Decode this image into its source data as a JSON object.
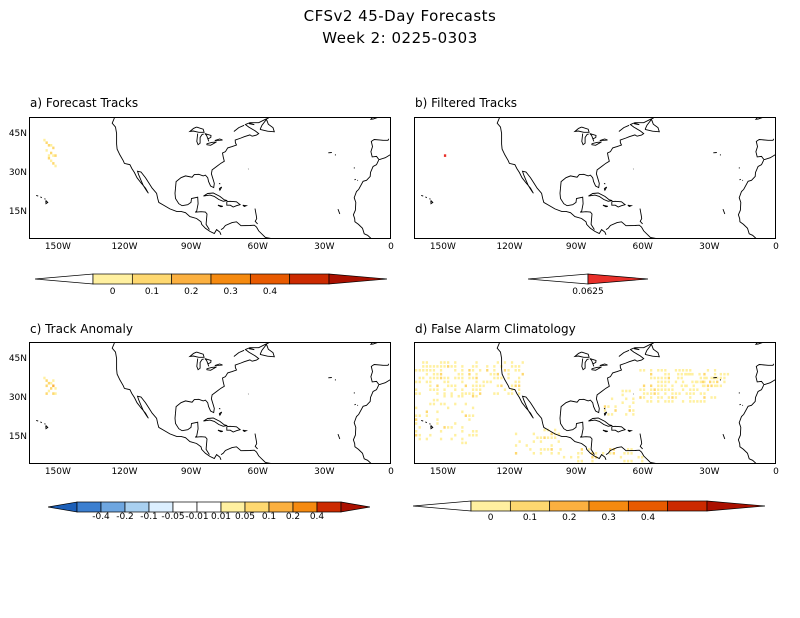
{
  "title": "CFSv2 45-Day Forecasts",
  "subtitle": "Week 2: 0225-0303",
  "colors": {
    "coast": "#000000",
    "warm": [
      "#fff0a0",
      "#fed870",
      "#fbb040",
      "#f58a10",
      "#e85a00",
      "#cc2a00",
      "#aa1000"
    ],
    "cool": [
      "#1c5fb8",
      "#3c7fd0",
      "#6ea6e0",
      "#a9d0f0",
      "#dcefff"
    ],
    "red_marker": "#e8302a"
  },
  "axes": {
    "lat_labels": [
      "45N",
      "30N",
      "15N"
    ],
    "lon_labels": [
      "150W",
      "120W",
      "90W",
      "60W",
      "30W",
      "0"
    ]
  },
  "panels": {
    "a": {
      "label": "a) Forecast Tracks",
      "colorbar_labels": [
        "0",
        "0.1",
        "0.2",
        "0.3",
        "0.4"
      ],
      "cells": [
        [
          -157,
          44,
          0
        ],
        [
          -156,
          43,
          1
        ],
        [
          -155,
          42,
          1
        ],
        [
          -154,
          42,
          0
        ],
        [
          -153,
          41,
          1
        ],
        [
          -156,
          40,
          0
        ],
        [
          -154,
          39,
          1
        ],
        [
          -153,
          38,
          0
        ],
        [
          -155,
          37,
          1
        ],
        [
          -154,
          36,
          0
        ],
        [
          -153,
          35,
          1
        ],
        [
          -152,
          34,
          0
        ],
        [
          -155,
          38,
          0
        ],
        [
          -152,
          38,
          1
        ]
      ]
    },
    "b": {
      "label": "b) Filtered Tracks",
      "colorbar_labels": [
        "0.0625"
      ],
      "cells": [
        [
          -150,
          38,
          0
        ]
      ]
    },
    "c": {
      "label": "c) Track Anomaly",
      "colorbar_labels": [
        "-0.4",
        "-0.2",
        "-0.1",
        "-0.05",
        "-0.01",
        "0.01",
        "0.05",
        "0.1",
        "0.2",
        "0.4"
      ],
      "cells": [
        [
          -157,
          39,
          0
        ],
        [
          -156,
          38,
          1
        ],
        [
          -155,
          37,
          1
        ],
        [
          -154,
          37,
          0
        ],
        [
          -153,
          36,
          2
        ],
        [
          -156,
          36,
          1
        ],
        [
          -154,
          35,
          1
        ],
        [
          -152,
          35,
          0
        ],
        [
          -155,
          34,
          0
        ],
        [
          -153,
          33,
          1
        ],
        [
          -152,
          33,
          0
        ],
        [
          -156,
          33,
          1
        ],
        [
          -153,
          38,
          0
        ]
      ]
    },
    "d": {
      "label": "d) False Alarm Climatology",
      "colorbar_labels": [
        "0",
        "0.1",
        "0.2",
        "0.3",
        "0.4"
      ]
    }
  }
}
